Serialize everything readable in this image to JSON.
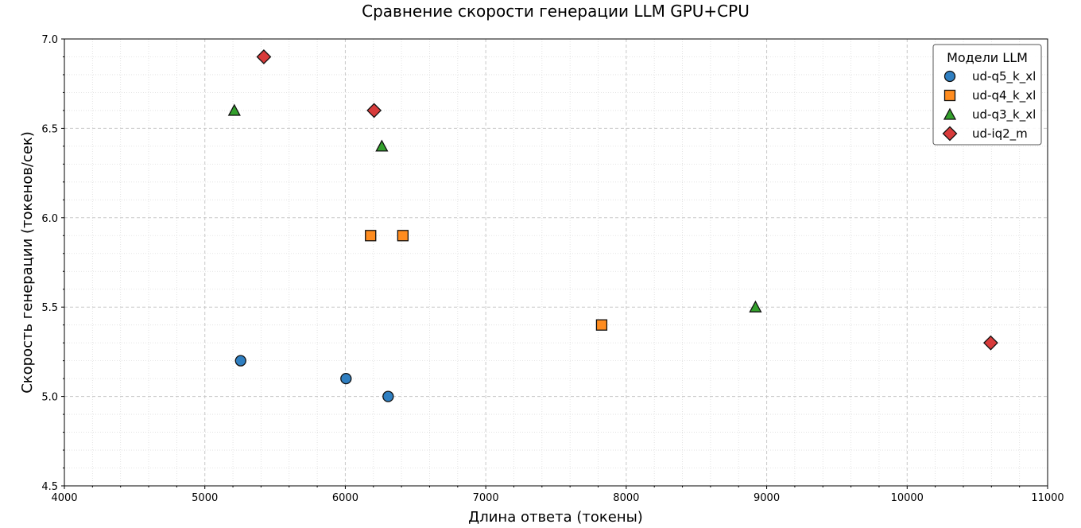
{
  "chart_data": {
    "type": "scatter",
    "title": "Сравнение скорости генерации LLM GPU+CPU",
    "xlabel": "Длина ответа (токены)",
    "ylabel": "Скорость генерации (токенов/сек)",
    "xlim": [
      4000,
      11000
    ],
    "ylim": [
      4.5,
      7.0
    ],
    "xticks": [
      4000,
      5000,
      6000,
      7000,
      8000,
      9000,
      10000,
      11000
    ],
    "yticks": [
      "4.5",
      "5.0",
      "5.5",
      "6.0",
      "6.5",
      "7.0"
    ],
    "grid": {
      "major": "dashed",
      "minor": "dotted"
    },
    "legend": {
      "title": "Модели LLM",
      "placement": "top-right"
    },
    "series": [
      {
        "name": "ud-q5_k_xl",
        "marker": "circle",
        "color": "#2f7fc1",
        "x": [
          5255,
          6005,
          6305
        ],
        "y": [
          5.2,
          5.1,
          5.0
        ]
      },
      {
        "name": "ud-q4_k_xl",
        "marker": "square",
        "color": "#ff8c1f",
        "x": [
          6180,
          6410,
          7825
        ],
        "y": [
          5.9,
          5.9,
          5.4
        ]
      },
      {
        "name": "ud-q3_k_xl",
        "marker": "triangle",
        "color": "#33a02c",
        "x": [
          5210,
          6260,
          8920
        ],
        "y": [
          6.6,
          6.4,
          5.5
        ]
      },
      {
        "name": "ud-iq2_m",
        "marker": "diamond",
        "color": "#d83b3b",
        "x": [
          5420,
          6205,
          10595
        ],
        "y": [
          6.9,
          6.6,
          5.3
        ]
      }
    ]
  }
}
